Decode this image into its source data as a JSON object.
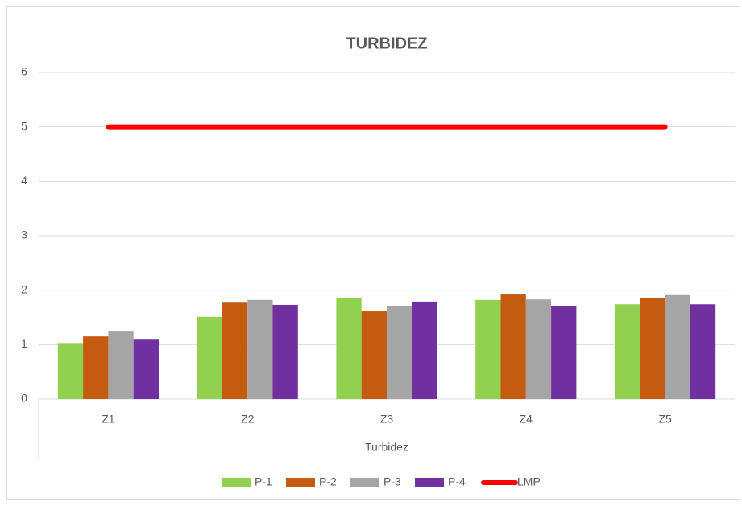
{
  "chart_data": {
    "type": "bar",
    "title": "TURBIDEZ",
    "x_label": "Turbidez",
    "categories": [
      "Z1",
      "Z2",
      "Z3",
      "Z4",
      "Z5"
    ],
    "series": [
      {
        "name": "P-1",
        "color": "#92d050",
        "values": [
          1.03,
          1.51,
          1.85,
          1.82,
          1.74
        ]
      },
      {
        "name": "P-2",
        "color": "#c55a11",
        "values": [
          1.15,
          1.77,
          1.61,
          1.92,
          1.85
        ]
      },
      {
        "name": "P-3",
        "color": "#a5a5a5",
        "values": [
          1.24,
          1.82,
          1.71,
          1.83,
          1.91
        ]
      },
      {
        "name": "P-4",
        "color": "#7030a0",
        "values": [
          1.09,
          1.73,
          1.79,
          1.7,
          1.74
        ]
      },
      {
        "name": "LMP",
        "color": "#ff0000",
        "type": "line",
        "values": [
          5,
          5,
          5,
          5,
          5
        ]
      }
    ],
    "ylim": [
      0,
      6
    ],
    "yticks": [
      0,
      1,
      2,
      3,
      4,
      5,
      6
    ],
    "grid": true,
    "legend": "bottom"
  }
}
